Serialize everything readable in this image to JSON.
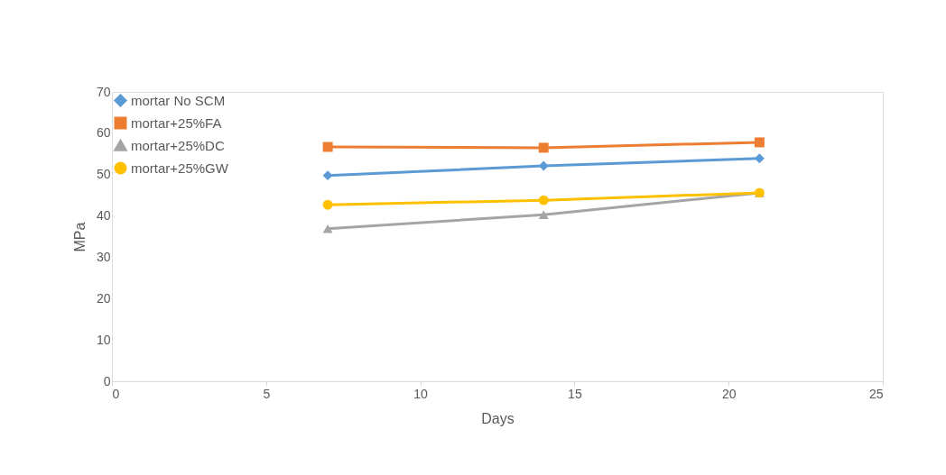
{
  "chart_data": {
    "type": "line",
    "xlabel": "Days",
    "ylabel": "MPa",
    "x": [
      7,
      14,
      21
    ],
    "series": [
      {
        "name": "mortar No SCM",
        "color": "#5b9bd5",
        "marker": "diamond",
        "values": [
          49.8,
          52.1,
          53.9
        ]
      },
      {
        "name": "mortar+25%FA",
        "color": "#ed7d31",
        "marker": "square",
        "values": [
          56.7,
          56.5,
          57.8
        ]
      },
      {
        "name": "mortar+25%DC",
        "color": "#a5a5a5",
        "marker": "triangle",
        "values": [
          36.9,
          40.3,
          45.6
        ]
      },
      {
        "name": "mortar+25%GW",
        "color": "#ffc000",
        "marker": "circle",
        "values": [
          42.7,
          43.8,
          45.6
        ]
      }
    ],
    "xlim": [
      0,
      25
    ],
    "xticks": [
      0,
      5,
      10,
      15,
      20,
      25
    ],
    "ylim": [
      0,
      70
    ],
    "yticks": [
      0,
      10,
      20,
      30,
      40,
      50,
      60,
      70
    ],
    "grid": false,
    "legend": "top left",
    "line_style": "solid"
  }
}
